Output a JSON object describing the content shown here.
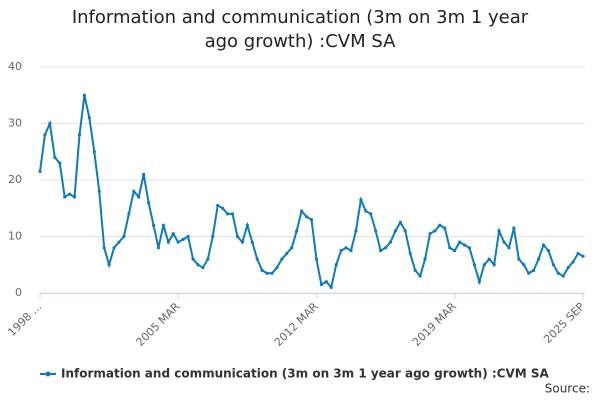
{
  "chart_data": {
    "type": "line",
    "title": "Information and communication (3m on 3m 1 year ago growth) :CVM SA",
    "source": "Source:",
    "categories": [
      "1998 ...",
      null,
      null,
      null,
      null,
      null,
      null,
      null,
      null,
      null,
      null,
      null,
      null,
      null,
      null,
      null,
      null,
      null,
      null,
      null,
      null,
      null,
      null,
      null,
      null,
      null,
      null,
      null,
      "2005 MAR",
      null,
      null,
      null,
      null,
      null,
      null,
      null,
      null,
      null,
      null,
      null,
      null,
      null,
      null,
      null,
      null,
      null,
      null,
      null,
      null,
      null,
      null,
      null,
      null,
      null,
      null,
      null,
      "2012 MAR",
      null,
      null,
      null,
      null,
      null,
      null,
      null,
      null,
      null,
      null,
      null,
      null,
      null,
      null,
      null,
      null,
      null,
      null,
      null,
      null,
      null,
      null,
      null,
      null,
      null,
      null,
      null,
      "2019 MAR",
      null,
      null,
      null,
      null,
      null,
      null,
      null,
      null,
      null,
      null,
      null,
      null,
      null,
      null,
      null,
      null,
      null,
      null,
      null,
      null,
      null,
      null,
      null,
      null,
      null,
      "2025 SEP"
    ],
    "series": [
      {
        "name": "Information and communication (3m on 3m 1 year ago growth) :CVM SA",
        "color": "#0f7cb6",
        "values": [
          21.5,
          28,
          30,
          24,
          23,
          17,
          17.5,
          17,
          28,
          35,
          31,
          25,
          18,
          8,
          5,
          8,
          9,
          10,
          14,
          18,
          17,
          21,
          16,
          12,
          8,
          12,
          9,
          10.5,
          9,
          9.5,
          10,
          6,
          5,
          4.5,
          6,
          10,
          15.5,
          15,
          14,
          14,
          10,
          9,
          12,
          9,
          6,
          4,
          3.5,
          3.5,
          4.5,
          6,
          7,
          8,
          11,
          14.5,
          13.5,
          13,
          6,
          1.5,
          2,
          1,
          5,
          7.5,
          8,
          7.5,
          11,
          16.5,
          14.5,
          14,
          11,
          7.5,
          8,
          9,
          11,
          12.5,
          11,
          7,
          4,
          3,
          6,
          10.5,
          11,
          12,
          11.5,
          8,
          7.5,
          9,
          8.5,
          8,
          5,
          2,
          5,
          6,
          5,
          11,
          9,
          8,
          11.5,
          6,
          5,
          3.5,
          4,
          6,
          8.5,
          7.5,
          5,
          3.5,
          3,
          4.5,
          5.5,
          7,
          6.5
        ]
      }
    ],
    "ylim": [
      0,
      40
    ],
    "yticks": [
      0,
      10,
      20,
      30,
      40
    ],
    "grid": true
  }
}
